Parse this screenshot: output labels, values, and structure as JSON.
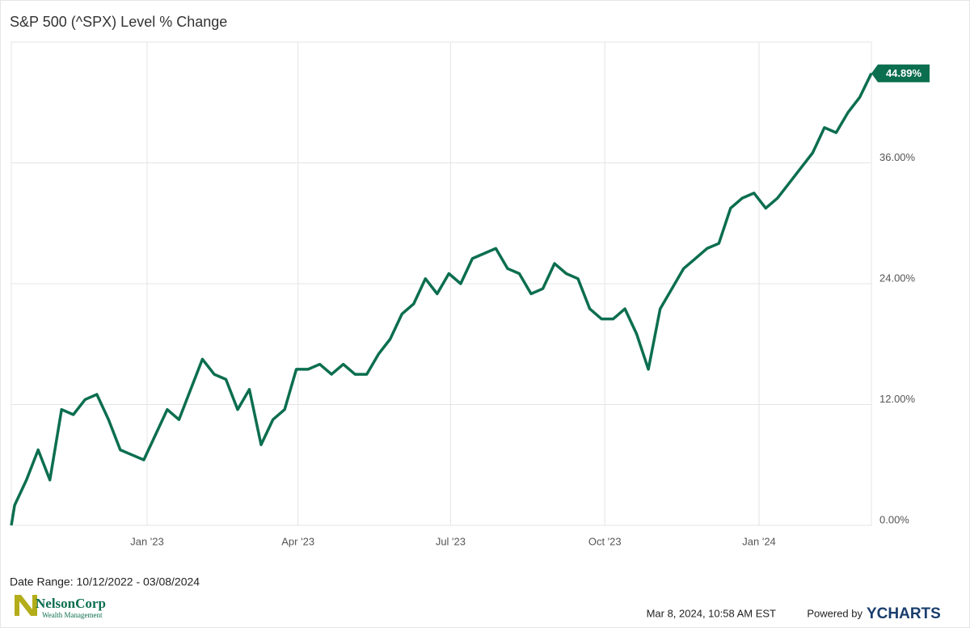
{
  "chart_data": {
    "type": "line",
    "title": "S&P 500 (^SPX) Level % Change",
    "date_range": "Date Range: 10/12/2022 - 03/08/2024",
    "timestamp": "Mar 8, 2024, 10:58 AM EST",
    "powered_by": "Powered by",
    "brand": "YCHARTS",
    "logo_name": "NelsonCorp",
    "logo_tagline": "Wealth Management",
    "x": [
      "2022-10-12",
      "2022-10-14",
      "2022-10-21",
      "2022-10-28",
      "2022-11-04",
      "2022-11-11",
      "2022-11-18",
      "2022-11-25",
      "2022-12-02",
      "2022-12-09",
      "2022-12-16",
      "2022-12-23",
      "2022-12-30",
      "2023-01-06",
      "2023-01-13",
      "2023-01-20",
      "2023-01-27",
      "2023-02-03",
      "2023-02-10",
      "2023-02-17",
      "2023-02-24",
      "2023-03-03",
      "2023-03-10",
      "2023-03-17",
      "2023-03-24",
      "2023-03-31",
      "2023-04-07",
      "2023-04-14",
      "2023-04-21",
      "2023-04-28",
      "2023-05-05",
      "2023-05-12",
      "2023-05-19",
      "2023-05-26",
      "2023-06-02",
      "2023-06-09",
      "2023-06-16",
      "2023-06-23",
      "2023-06-30",
      "2023-07-07",
      "2023-07-14",
      "2023-07-21",
      "2023-07-28",
      "2023-08-04",
      "2023-08-11",
      "2023-08-18",
      "2023-08-25",
      "2023-09-01",
      "2023-09-08",
      "2023-09-15",
      "2023-09-22",
      "2023-09-29",
      "2023-10-06",
      "2023-10-13",
      "2023-10-20",
      "2023-10-27",
      "2023-11-03",
      "2023-11-10",
      "2023-11-17",
      "2023-11-24",
      "2023-12-01",
      "2023-12-08",
      "2023-12-15",
      "2023-12-22",
      "2023-12-29",
      "2024-01-05",
      "2024-01-12",
      "2024-01-19",
      "2024-01-26",
      "2024-02-02",
      "2024-02-09",
      "2024-02-16",
      "2024-02-23",
      "2024-03-01",
      "2024-03-08"
    ],
    "series": [
      {
        "name": "S&P 500 (^SPX) Level % Change",
        "color": "#0b6e4f",
        "values": [
          0,
          2,
          4.5,
          7.5,
          4.5,
          11.5,
          11,
          12.5,
          13,
          10.5,
          7.5,
          7,
          6.5,
          9,
          11.5,
          10.5,
          13.5,
          16.5,
          15,
          14.5,
          11.5,
          13.5,
          8,
          10.5,
          11.5,
          15.5,
          15.5,
          16,
          15,
          16,
          15,
          15,
          17,
          18.5,
          21,
          22,
          24.5,
          23,
          25,
          24,
          26.5,
          27,
          27.5,
          25.5,
          25,
          23,
          23.5,
          26,
          25,
          24.5,
          21.5,
          20.5,
          20.5,
          21.5,
          19,
          15.5,
          21.5,
          23.5,
          25.5,
          26.5,
          27.5,
          28,
          31.5,
          32.5,
          33,
          31.5,
          32.5,
          34,
          35.5,
          37,
          39.5,
          39,
          41,
          42.5,
          44.89
        ],
        "value_labels": [
          null,
          null,
          null,
          null,
          null,
          null,
          null,
          null,
          null,
          null,
          null,
          null,
          null,
          null,
          null,
          null,
          null,
          null,
          null,
          null,
          null,
          null,
          null,
          null,
          null,
          null,
          null,
          null,
          null,
          null,
          null,
          null,
          null,
          null,
          null,
          null,
          null,
          null,
          null,
          null,
          null,
          null,
          null,
          null,
          null,
          null,
          null,
          null,
          null,
          null,
          null,
          null,
          null,
          null,
          null,
          null,
          null,
          null,
          null,
          null,
          null,
          null,
          null,
          null,
          null,
          null,
          null,
          null,
          null,
          null,
          null,
          null,
          null,
          null,
          "44.89%"
        ]
      }
    ],
    "xlim": [
      "2022-10-12",
      "2024-03-08"
    ],
    "xticks": [
      {
        "value": "2023-01",
        "label": "Jan '23"
      },
      {
        "value": "2023-04",
        "label": "Apr '23"
      },
      {
        "value": "2023-07",
        "label": "Jul '23"
      },
      {
        "value": "2023-10",
        "label": "Oct '23"
      },
      {
        "value": "2024-01",
        "label": "Jan '24"
      }
    ],
    "ylim": [
      0,
      48
    ],
    "yticks": [
      {
        "value": 0,
        "label": "0.00%"
      },
      {
        "value": 12,
        "label": "12.00%"
      },
      {
        "value": 24,
        "label": "24.00%"
      },
      {
        "value": 36,
        "label": "36.00%"
      }
    ],
    "grid": true
  }
}
